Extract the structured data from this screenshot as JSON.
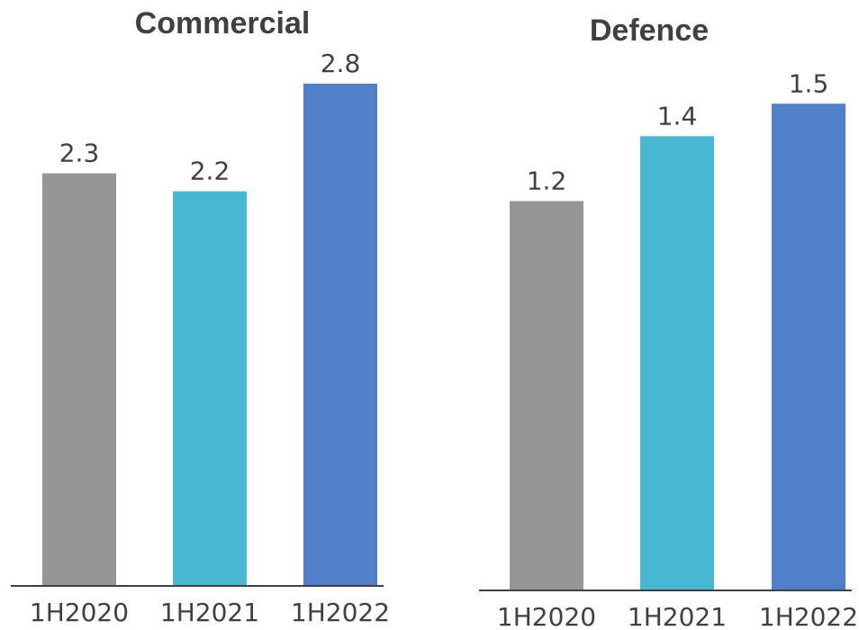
{
  "chart_data": [
    {
      "type": "bar",
      "title": "Commercial",
      "categories": [
        "1H2020",
        "1H2021",
        "1H2022"
      ],
      "values": [
        2.3,
        2.2,
        2.8
      ],
      "colors": [
        "#969696",
        "#47b7d2",
        "#4f80c9"
      ],
      "xlabel": "",
      "ylabel": "",
      "grid": false
    },
    {
      "type": "bar",
      "title": "Defence",
      "categories": [
        "1H2020",
        "1H2021",
        "1H2022"
      ],
      "values": [
        1.2,
        1.4,
        1.5
      ],
      "colors": [
        "#969696",
        "#47b7d2",
        "#4f80c9"
      ],
      "xlabel": "",
      "ylabel": "",
      "grid": false
    }
  ]
}
